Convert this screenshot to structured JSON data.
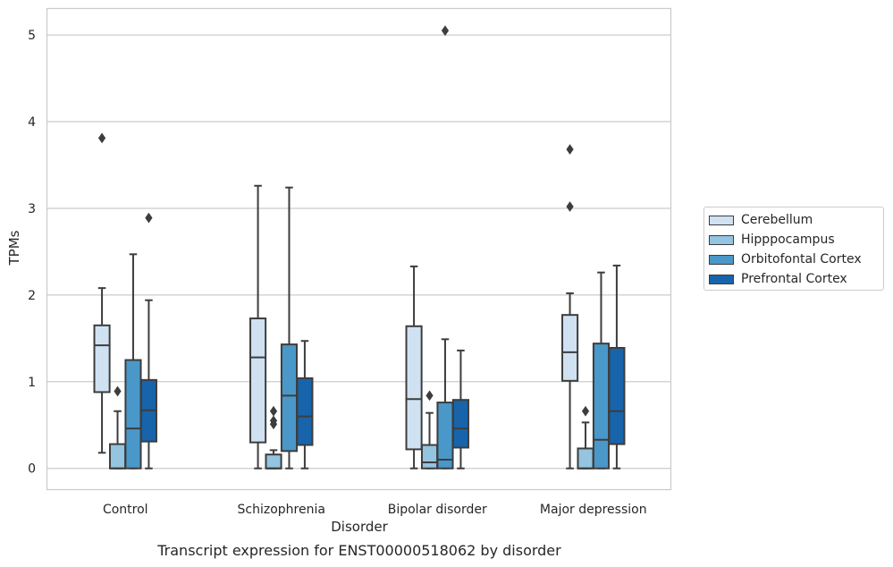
{
  "chart_data": {
    "type": "boxplot",
    "title": "Transcript expression for ENST00000518062 by disorder",
    "xlabel": "Disorder",
    "ylabel": "TPMs",
    "ylim": [
      -0.24,
      5.3
    ],
    "yticks": [
      0,
      1,
      2,
      3,
      4,
      5
    ],
    "grid": true,
    "legend_position": "right",
    "categories": [
      "Control",
      "Schizophrenia",
      "Bipolar disorder",
      "Major depression"
    ],
    "series": [
      {
        "name": "Cerebellum",
        "color": "#d0e1f2",
        "boxes": [
          {
            "whislo": 0.18,
            "q1": 0.88,
            "med": 1.42,
            "q3": 1.65,
            "whishi": 2.08,
            "fliers": [
              3.81
            ]
          },
          {
            "whislo": 0.0,
            "q1": 0.3,
            "med": 1.28,
            "q3": 1.73,
            "whishi": 3.26,
            "fliers": []
          },
          {
            "whislo": 0.0,
            "q1": 0.22,
            "med": 0.8,
            "q3": 1.64,
            "whishi": 2.33,
            "fliers": []
          },
          {
            "whislo": 0.0,
            "q1": 1.01,
            "med": 1.34,
            "q3": 1.77,
            "whishi": 2.02,
            "fliers": [
              3.02,
              3.68
            ]
          }
        ]
      },
      {
        "name": "Hipppocampus",
        "color": "#94c4df",
        "boxes": [
          {
            "whislo": 0.0,
            "q1": 0.0,
            "med": 0.0,
            "q3": 0.28,
            "whishi": 0.66,
            "fliers": [
              0.89
            ]
          },
          {
            "whislo": 0.0,
            "q1": 0.0,
            "med": 0.0,
            "q3": 0.16,
            "whishi": 0.21,
            "fliers": [
              0.51,
              0.55,
              0.66
            ]
          },
          {
            "whislo": 0.0,
            "q1": 0.0,
            "med": 0.07,
            "q3": 0.27,
            "whishi": 0.64,
            "fliers": [
              0.84
            ]
          },
          {
            "whislo": 0.0,
            "q1": 0.0,
            "med": 0.0,
            "q3": 0.23,
            "whishi": 0.53,
            "fliers": [
              0.66
            ]
          }
        ]
      },
      {
        "name": "Orbitofontal Cortex",
        "color": "#4a98c9",
        "boxes": [
          {
            "whislo": 0.0,
            "q1": 0.0,
            "med": 0.46,
            "q3": 1.25,
            "whishi": 2.47,
            "fliers": []
          },
          {
            "whislo": 0.0,
            "q1": 0.2,
            "med": 0.84,
            "q3": 1.43,
            "whishi": 3.24,
            "fliers": []
          },
          {
            "whislo": 0.0,
            "q1": 0.0,
            "med": 0.1,
            "q3": 0.76,
            "whishi": 1.49,
            "fliers": [
              5.05
            ]
          },
          {
            "whislo": 0.0,
            "q1": 0.0,
            "med": 0.33,
            "q3": 1.44,
            "whishi": 2.26,
            "fliers": []
          }
        ]
      },
      {
        "name": "Prefrontal Cortex",
        "color": "#1764ab",
        "boxes": [
          {
            "whislo": 0.0,
            "q1": 0.31,
            "med": 0.67,
            "q3": 1.02,
            "whishi": 1.94,
            "fliers": [
              2.89
            ]
          },
          {
            "whislo": 0.0,
            "q1": 0.27,
            "med": 0.6,
            "q3": 1.04,
            "whishi": 1.47,
            "fliers": []
          },
          {
            "whislo": 0.0,
            "q1": 0.24,
            "med": 0.46,
            "q3": 0.79,
            "whishi": 1.36,
            "fliers": []
          },
          {
            "whislo": 0.0,
            "q1": 0.28,
            "med": 0.66,
            "q3": 1.39,
            "whishi": 2.34,
            "fliers": []
          }
        ]
      }
    ]
  }
}
